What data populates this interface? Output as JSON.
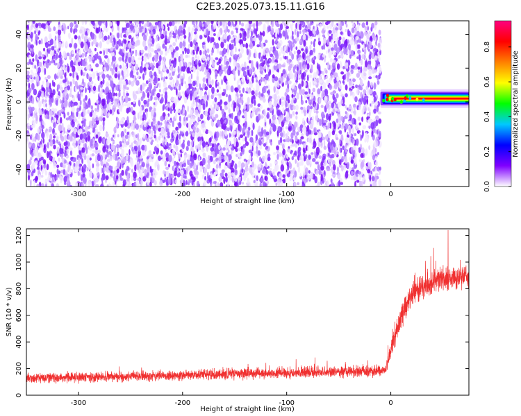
{
  "title": "C2E3.2025.073.15.11.G16",
  "chart_data": [
    {
      "type": "heatmap",
      "xlabel": "Height of straight line (km)",
      "ylabel": "Frequency (Hz)",
      "xlim": [
        -350,
        75
      ],
      "ylim": [
        -50,
        48
      ],
      "xticks": [
        -300,
        -200,
        -100,
        0
      ],
      "yticks": [
        -40,
        -20,
        0,
        20,
        40
      ],
      "colorbar": {
        "label": "Normalized spectral amplitude",
        "range": [
          0,
          0.95
        ],
        "ticks": [
          0.0,
          0.2,
          0.4,
          0.6,
          0.8
        ],
        "colormap": [
          "#ffffff",
          "#8000ff",
          "#0000ff",
          "#00c8ff",
          "#00ff00",
          "#ffff00",
          "#ff8000",
          "#ff0000",
          "#ff0080"
        ]
      },
      "noise_region": {
        "x": [
          -350,
          -10
        ],
        "y": [
          -50,
          48
        ],
        "amplitude_range": [
          0.0,
          0.15
        ]
      },
      "signal_band": {
        "x": [
          -10,
          75
        ],
        "frequency": 2,
        "bandwidth": 5,
        "peak_amplitude": 0.95
      }
    },
    {
      "type": "line",
      "xlabel": "Height of straight line (km)",
      "ylabel": "SNR (10 * v/v)",
      "xlim": [
        -350,
        75
      ],
      "ylim": [
        0,
        1250
      ],
      "xticks": [
        -300,
        -200,
        -100,
        0
      ],
      "yticks": [
        0,
        200,
        400,
        600,
        800,
        1000,
        1200
      ],
      "series": [
        {
          "color": "#f03030",
          "envelope": [
            {
              "x": -350,
              "mean": 130,
              "spread": 70
            },
            {
              "x": -250,
              "mean": 140,
              "spread": 70
            },
            {
              "x": -150,
              "mean": 160,
              "spread": 75
            },
            {
              "x": -50,
              "mean": 175,
              "spread": 80
            },
            {
              "x": -5,
              "mean": 185,
              "spread": 80
            },
            {
              "x": 0,
              "mean": 350,
              "spread": 150
            },
            {
              "x": 10,
              "mean": 600,
              "spread": 180
            },
            {
              "x": 20,
              "mean": 760,
              "spread": 170
            },
            {
              "x": 40,
              "mean": 850,
              "spread": 160
            },
            {
              "x": 75,
              "mean": 900,
              "spread": 160
            }
          ],
          "peak": {
            "x": 55,
            "y": 1240
          }
        }
      ]
    }
  ]
}
